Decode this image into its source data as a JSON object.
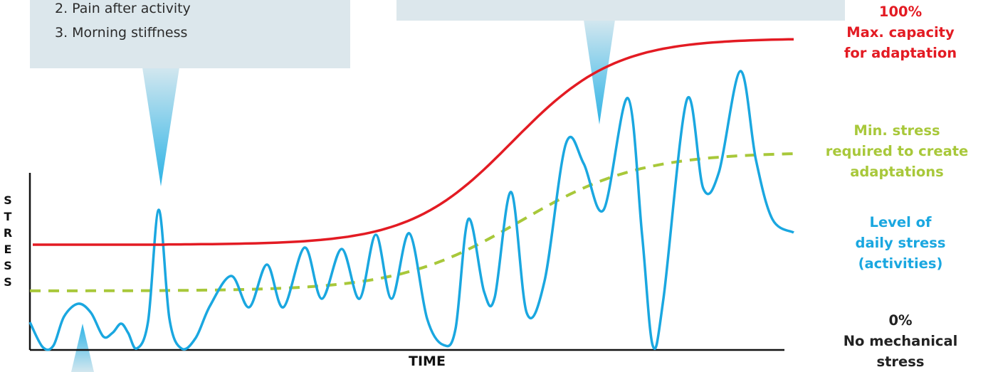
{
  "callouts": {
    "left": {
      "lines": [
        "2. Pain after activity",
        "3. Morning stiffness"
      ]
    },
    "right": {
      "lines": []
    }
  },
  "legend": {
    "max": {
      "percent": "100%",
      "line1": "Max. capacity",
      "line2": "for adaptation",
      "color": "#e31b23"
    },
    "min": {
      "line1": "Min. stress",
      "line2": "required to create",
      "line3": "adaptations",
      "color": "#a8c83a"
    },
    "daily": {
      "line1": "Level of",
      "line2": "daily stress",
      "line3": "(activities)",
      "color": "#1aa7e0"
    },
    "zero": {
      "percent": "0%",
      "line1": "No mechanical",
      "line2": "stress",
      "color": "#222222"
    }
  },
  "axes": {
    "xlabel": "TIME",
    "ylabel_letters": [
      "S",
      "T",
      "R",
      "E",
      "S",
      "S"
    ]
  },
  "colors": {
    "callout_bg": "#dce7ec",
    "pointer_top": "#d3e7ef",
    "pointer_bottom": "#2cb3e6",
    "axis": "#111111"
  }
}
